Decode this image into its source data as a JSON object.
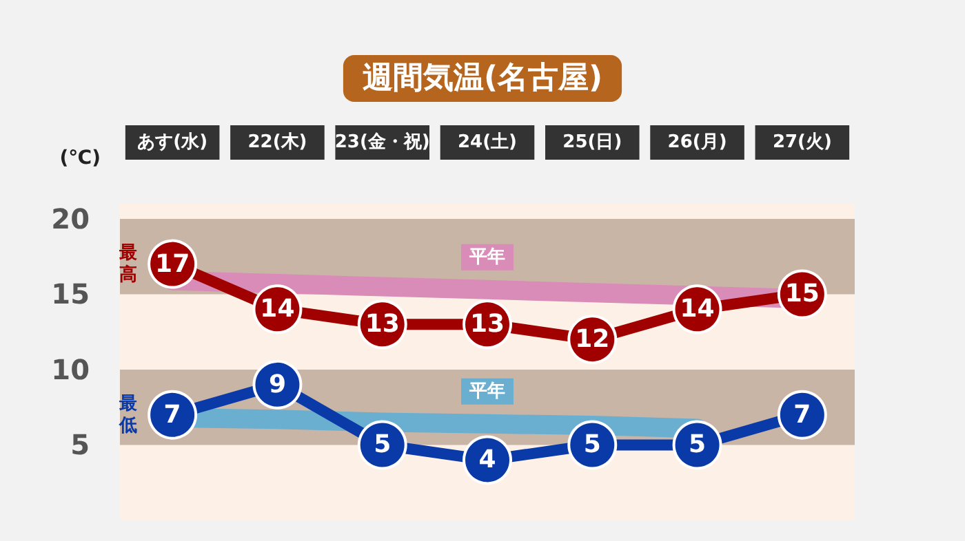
{
  "chart_data": {
    "type": "line",
    "title": "週間気温(名古屋)",
    "ylabel": "(℃)",
    "categories": [
      "あす(水)",
      "22(木)",
      "23(金・祝)",
      "24(土)",
      "25(日)",
      "26(月)",
      "27(火)"
    ],
    "series": [
      {
        "name": "平年",
        "color": "#d98cb8",
        "marker": "none",
        "values": [
          15.9,
          15.7,
          15.5,
          15.3,
          15.1,
          null,
          14.7
        ],
        "value_labels": [
          null,
          null,
          null,
          null,
          null,
          null,
          null
        ]
      },
      {
        "name": "平年",
        "color": "#6aaed0",
        "marker": "none",
        "values": [
          6.8,
          6.7,
          6.5,
          6.4,
          6.3,
          6.1,
          null
        ],
        "value_labels": [
          null,
          null,
          null,
          null,
          null,
          null,
          null
        ]
      },
      {
        "name": "最高",
        "color": "#a00000",
        "values": [
          17,
          14,
          13,
          13,
          12,
          14,
          15
        ],
        "value_labels": [
          "17",
          "14",
          "13",
          "13",
          "12",
          "14",
          "15"
        ]
      },
      {
        "name": "最低",
        "color": "#0a3aa8",
        "values": [
          7,
          9,
          5,
          4,
          5,
          5,
          7
        ],
        "value_labels": [
          "7",
          "9",
          "5",
          "4",
          "5",
          "5",
          "7"
        ]
      }
    ],
    "ylim": [
      0,
      21
    ],
    "yticks": [
      5,
      10,
      15,
      20
    ],
    "grid": false,
    "marker": "circle",
    "bands": [
      {
        "axis": "y",
        "from": 15,
        "to": 20,
        "color": "#c9b5a6"
      },
      {
        "axis": "y",
        "from": 5,
        "to": 10,
        "color": "#c9b5a6"
      }
    ]
  }
}
